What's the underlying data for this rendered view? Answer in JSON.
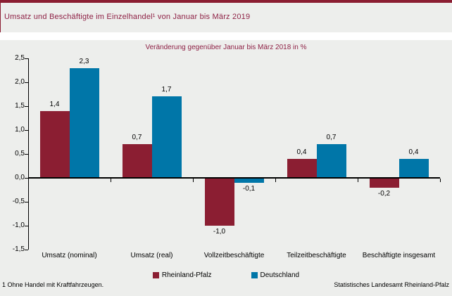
{
  "header": {
    "title": "Umsatz und Beschäftigte im Einzelhandel¹ von Januar bis März 2019"
  },
  "chart_data": {
    "type": "bar",
    "title": "Umsatz und Beschäftigte im Einzelhandel¹ von Januar bis März 2019",
    "subtitle": "Veränderung gegenüber Januar bis März 2018 in %",
    "categories": [
      "Umsatz (nominal)",
      "Umsatz (real)",
      "Vollzeitbeschäftigte",
      "Teilzeitbeschäftigte",
      "Beschäftigte insgesamt"
    ],
    "series": [
      {
        "name": "Rheinland-Pfalz",
        "color": "#8B1E32",
        "values": [
          1.4,
          0.7,
          -1.0,
          0.4,
          -0.2
        ],
        "labels": [
          "1,4",
          "0,7",
          "-1,0",
          "0,4",
          "-0,2"
        ]
      },
      {
        "name": "Deutschland",
        "color": "#0076A8",
        "values": [
          2.3,
          1.7,
          -0.1,
          0.7,
          0.4
        ],
        "labels": [
          "2,3",
          "1,7",
          "-0,1",
          "0,7",
          "0,4"
        ]
      }
    ],
    "ylim": [
      -1.5,
      2.5
    ],
    "y_ticks": [
      {
        "value": 2.5,
        "label": "2,5"
      },
      {
        "value": 2.0,
        "label": "2,0"
      },
      {
        "value": 1.5,
        "label": "1,5"
      },
      {
        "value": 1.0,
        "label": "1,0"
      },
      {
        "value": 0.5,
        "label": "0,5"
      },
      {
        "value": 0.0,
        "label": "0,0"
      },
      {
        "value": -0.5,
        "label": "-0,5"
      },
      {
        "value": -1.0,
        "label": "-1,0"
      },
      {
        "value": -1.5,
        "label": "-1,5"
      }
    ],
    "grid": false,
    "legend_position": "bottom",
    "value_label_decimal": "comma"
  },
  "footer": {
    "footnote": "1 Ohne Handel mit Kraftfahrzeugen.",
    "source": "Statistisches Landesamt Rheinland-Pfalz"
  },
  "colors": {
    "accent_red": "#8B1E32",
    "accent_text": "#8E2145",
    "band_background": "#EDEEEC",
    "series_rheinland_pfalz": "#8B1E32",
    "series_deutschland": "#0076A8",
    "axis": "#000000"
  }
}
